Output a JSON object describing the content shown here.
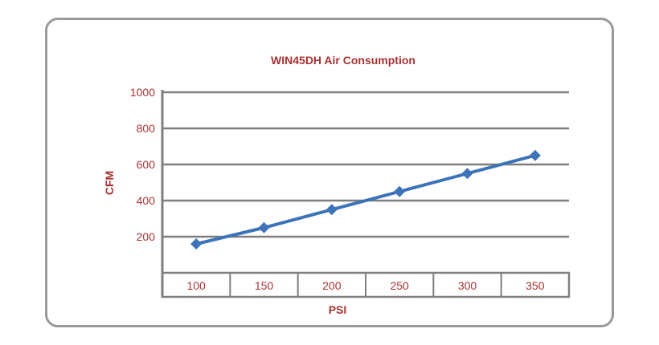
{
  "chart_data": {
    "type": "line",
    "title": "WIN45DH  Air Consumption",
    "xlabel": "PSI",
    "ylabel": "CFM",
    "categories": [
      "100",
      "150",
      "200",
      "250",
      "300",
      "350"
    ],
    "series": [
      {
        "name": "CFM",
        "values": [
          160,
          250,
          350,
          450,
          550,
          650
        ]
      }
    ],
    "yticks": [
      "200",
      "400",
      "600",
      "800",
      "1000"
    ],
    "ylim": [
      0,
      1000
    ],
    "grid": true,
    "legend": "none",
    "colors": {
      "line": "#3d73b9",
      "text": "#a83232",
      "grid": "#7f7f7f"
    }
  }
}
